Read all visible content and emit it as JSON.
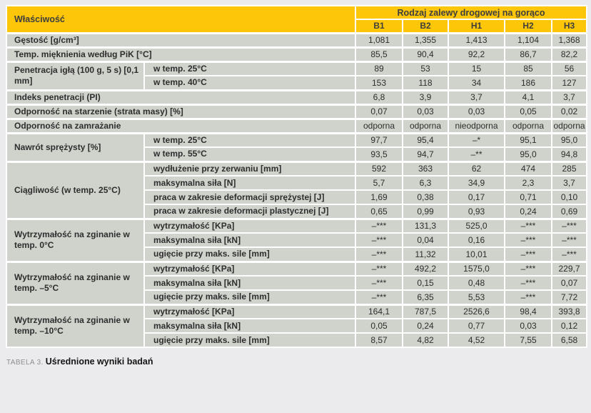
{
  "colors": {
    "header_bg": "#FDC608",
    "cell_bg": "#D0D3CC",
    "page_bg": "#EBEBED",
    "separator": "#FFFFFF",
    "text": "#2E2E2E"
  },
  "table": {
    "property_header": "Właściwość",
    "group_header": "Rodzaj zalewy drogowej na gorąco",
    "columns": [
      "B1",
      "B2",
      "H1",
      "H2",
      "H3"
    ],
    "sections": [
      {
        "label": "Gęstość [g/cm³]",
        "values": [
          "1,081",
          "1,355",
          "1,413",
          "1,104",
          "1,368"
        ]
      },
      {
        "label": "Temp. mięknienia według PiK [°C]",
        "values": [
          "85,5",
          "90,4",
          "92,2",
          "86,7",
          "82,2"
        ]
      },
      {
        "group": "Penetracja igłą (100 g, 5 s) [0,1 mm]",
        "rows": [
          {
            "label": "w temp. 25°C",
            "values": [
              "89",
              "53",
              "15",
              "85",
              "56"
            ]
          },
          {
            "label": "w temp. 40°C",
            "values": [
              "153",
              "118",
              "34",
              "186",
              "127"
            ]
          }
        ]
      },
      {
        "label": "Indeks penetracji (PI)",
        "values": [
          "6,8",
          "3,9",
          "3,7",
          "4,1",
          "3,7"
        ]
      },
      {
        "label": "Odporność na starzenie (strata masy) [%]",
        "values": [
          "0,07",
          "0,03",
          "0,03",
          "0,05",
          "0,02"
        ]
      },
      {
        "label": "Odporność na zamrażanie",
        "values": [
          "odporna",
          "odporna",
          "nieodporna",
          "odporna",
          "odporna"
        ]
      },
      {
        "group": "Nawrót sprężysty [%]",
        "rows": [
          {
            "label": "w temp. 25°C",
            "values": [
              "97,7",
              "95,4",
              "–*",
              "95,1",
              "95,0"
            ]
          },
          {
            "label": "w temp. 55°C",
            "values": [
              "93,5",
              "94,7",
              "–**",
              "95,0",
              "94,8"
            ]
          }
        ]
      },
      {
        "group": "Ciągliwość (w temp. 25°C)",
        "rows": [
          {
            "label": "wydłużenie przy zerwaniu [mm]",
            "values": [
              "592",
              "363",
              "62",
              "474",
              "285"
            ]
          },
          {
            "label": "maksymalna siła [N]",
            "values": [
              "5,7",
              "6,3",
              "34,9",
              "2,3",
              "3,7"
            ]
          },
          {
            "label": "praca w zakresie deformacji sprężystej [J]",
            "values": [
              "1,69",
              "0,38",
              "0,17",
              "0,71",
              "0,10"
            ]
          },
          {
            "label": "praca w zakresie deformacji plastycznej [J]",
            "values": [
              "0,65",
              "0,99",
              "0,93",
              "0,24",
              "0,69"
            ]
          }
        ]
      },
      {
        "group": "Wytrzymałość na zginanie w temp. 0°C",
        "rows": [
          {
            "label": "wytrzymałość [KPa]",
            "values": [
              "–***",
              "131,3",
              "525,0",
              "–***",
              "–***"
            ]
          },
          {
            "label": "maksymalna siła [kN]",
            "values": [
              "–***",
              "0,04",
              "0,16",
              "–***",
              "–***"
            ]
          },
          {
            "label": "ugięcie przy maks. sile [mm]",
            "values": [
              "–***",
              "11,32",
              "10,01",
              "–***",
              "–***"
            ]
          }
        ]
      },
      {
        "group": "Wytrzymałość na zginanie w temp. –5°C",
        "rows": [
          {
            "label": "wytrzymałość [KPa]",
            "values": [
              "–***",
              "492,2",
              "1575,0",
              "–***",
              "229,7"
            ]
          },
          {
            "label": "maksymalna siła [kN]",
            "values": [
              "–***",
              "0,15",
              "0,48",
              "–***",
              "0,07"
            ]
          },
          {
            "label": "ugięcie przy maks. sile [mm]",
            "values": [
              "–***",
              "6,35",
              "5,53",
              "–***",
              "7,72"
            ]
          }
        ]
      },
      {
        "group": "Wytrzymałość na zginanie w temp. –10°C",
        "rows": [
          {
            "label": "wytrzymałość [KPa]",
            "values": [
              "164,1",
              "787,5",
              "2526,6",
              "98,4",
              "393,8"
            ]
          },
          {
            "label": "maksymalna siła [kN]",
            "values": [
              "0,05",
              "0,24",
              "0,77",
              "0,03",
              "0,12"
            ]
          },
          {
            "label": "ugięcie przy maks. sile [mm]",
            "values": [
              "8,57",
              "4,82",
              "4,52",
              "7,55",
              "6,58"
            ]
          }
        ]
      }
    ]
  },
  "caption": {
    "prefix": "TABELA 3.",
    "text": "Uśrednione wyniki badań"
  }
}
